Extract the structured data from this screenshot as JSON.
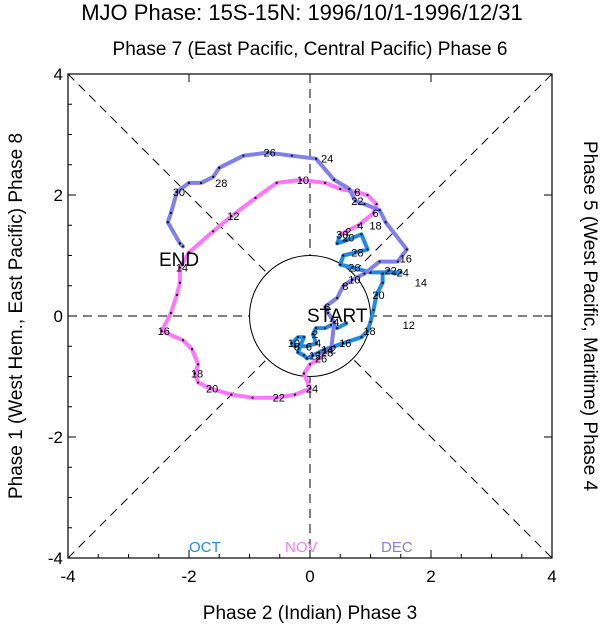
{
  "chart_data": {
    "type": "line",
    "title": "MJO Phase: 15S-15N: 1996/10/1-1996/12/31",
    "top_label": "Phase 7 (East Pacific, Central Pacific) Phase 6",
    "bottom_label": "Phase 2 (Indian) Phase 3",
    "left_label": "Phase 1 (West Hem., East Pacific) Phase 8",
    "right_label": "Phase 5 (West Pacific, Maritime) Phase 4",
    "xlim": [
      -4,
      4
    ],
    "ylim": [
      -4,
      4
    ],
    "xticks": [
      "-4",
      "-2",
      "0",
      "2",
      "4"
    ],
    "yticks": [
      "4",
      "2",
      "0",
      "-2",
      "-4"
    ],
    "annotations": {
      "start": "START",
      "end": "END"
    },
    "legend": [
      "OCT",
      "NOV",
      "DEC"
    ],
    "series": [
      {
        "name": "OCT",
        "color": "#1f8be6",
        "points": [
          [
            0.6,
            -0.12
          ],
          [
            0.45,
            -0.2
          ],
          [
            0.35,
            -0.15
          ],
          [
            0.25,
            -0.2
          ],
          [
            0.1,
            -0.2
          ],
          [
            0.05,
            -0.3
          ],
          [
            0.1,
            -0.45
          ],
          [
            -0.05,
            -0.5
          ],
          [
            -0.25,
            -0.5
          ],
          [
            -0.3,
            -0.45
          ],
          [
            -0.2,
            -0.35
          ],
          [
            -0.1,
            -0.35
          ],
          [
            -0.2,
            -0.6
          ],
          [
            -0.1,
            -0.65
          ],
          [
            -0.05,
            -0.7
          ],
          [
            0.05,
            -0.65
          ],
          [
            0.15,
            -0.6
          ],
          [
            0.25,
            -0.55
          ],
          [
            0.4,
            -0.5
          ],
          [
            0.55,
            -0.45
          ],
          [
            0.85,
            -0.35
          ],
          [
            0.95,
            -0.25
          ],
          [
            1.0,
            -0.1
          ],
          [
            1.05,
            0.1
          ],
          [
            1.1,
            0.35
          ],
          [
            1.2,
            0.55
          ],
          [
            1.2,
            0.7
          ],
          [
            1.3,
            0.75
          ],
          [
            1.4,
            0.7
          ],
          [
            1.5,
            0.72
          ],
          [
            1.0,
            0.72
          ],
          [
            0.7,
            0.8
          ],
          [
            0.5,
            0.85
          ],
          [
            0.55,
            1.0
          ],
          [
            0.75,
            1.05
          ],
          [
            0.95,
            1.1
          ],
          [
            0.85,
            1.35
          ],
          [
            0.6,
            1.25
          ],
          [
            0.45,
            1.2
          ],
          [
            0.5,
            1.35
          ]
        ],
        "labels": [
          {
            "text": "2",
            "x": 0.05,
            "y": -0.3
          },
          {
            "text": "4",
            "x": 0.1,
            "y": -0.45
          },
          {
            "text": "6",
            "x": -0.05,
            "y": -0.5
          },
          {
            "text": "8",
            "x": -0.25,
            "y": -0.5
          },
          {
            "text": "10",
            "x": -0.3,
            "y": -0.45
          },
          {
            "text": "12",
            "x": 0.05,
            "y": -0.65
          },
          {
            "text": "14",
            "x": 0.25,
            "y": -0.55
          },
          {
            "text": "16",
            "x": 0.55,
            "y": -0.45
          },
          {
            "text": "18",
            "x": 0.95,
            "y": -0.25
          },
          {
            "text": "20",
            "x": 1.1,
            "y": 0.35
          },
          {
            "text": "22",
            "x": 1.3,
            "y": 0.75
          },
          {
            "text": "24",
            "x": 1.5,
            "y": 0.72
          },
          {
            "text": "26",
            "x": 0.7,
            "y": 0.8
          },
          {
            "text": "28",
            "x": 0.75,
            "y": 1.05
          },
          {
            "text": "30",
            "x": 0.5,
            "y": 1.35
          }
        ]
      },
      {
        "name": "NOV",
        "color": "#ff77ff",
        "points": [
          [
            0.5,
            1.35
          ],
          [
            0.6,
            1.4
          ],
          [
            0.8,
            1.5
          ],
          [
            1.05,
            1.7
          ],
          [
            1.1,
            1.85
          ],
          [
            0.95,
            2.0
          ],
          [
            0.75,
            2.05
          ],
          [
            0.5,
            2.1
          ],
          [
            0.25,
            2.2
          ],
          [
            -0.15,
            2.25
          ],
          [
            -0.55,
            2.2
          ],
          [
            -0.9,
            1.95
          ],
          [
            -1.3,
            1.65
          ],
          [
            -1.6,
            1.4
          ],
          [
            -2.0,
            1.05
          ],
          [
            -2.15,
            0.8
          ],
          [
            -2.15,
            0.55
          ],
          [
            -2.2,
            0.35
          ],
          [
            -2.3,
            0.05
          ],
          [
            -2.45,
            -0.25
          ],
          [
            -2.1,
            -0.4
          ],
          [
            -1.95,
            -0.55
          ],
          [
            -1.85,
            -0.8
          ],
          [
            -1.9,
            -0.95
          ],
          [
            -1.85,
            -1.1
          ],
          [
            -1.65,
            -1.2
          ],
          [
            -1.3,
            -1.3
          ],
          [
            -0.95,
            -1.35
          ],
          [
            -0.55,
            -1.35
          ],
          [
            -0.25,
            -1.3
          ],
          [
            0.0,
            -1.2
          ],
          [
            -0.1,
            -0.95
          ],
          [
            0.0,
            -0.8
          ],
          [
            0.15,
            -0.7
          ],
          [
            0.25,
            -0.6
          ]
        ],
        "labels": [
          {
            "text": "2",
            "x": 0.6,
            "y": 1.4
          },
          {
            "text": "4",
            "x": 0.8,
            "y": 1.5
          },
          {
            "text": "6",
            "x": 1.05,
            "y": 1.7
          },
          {
            "text": "8",
            "x": 0.75,
            "y": 2.05
          },
          {
            "text": "10",
            "x": -0.15,
            "y": 2.25
          },
          {
            "text": "12",
            "x": -1.3,
            "y": 1.65
          },
          {
            "text": "14",
            "x": -2.15,
            "y": 0.8
          },
          {
            "text": "16",
            "x": -2.45,
            "y": -0.25
          },
          {
            "text": "18",
            "x": -1.9,
            "y": -0.95
          },
          {
            "text": "20",
            "x": -1.65,
            "y": -1.2
          },
          {
            "text": "22",
            "x": -0.55,
            "y": -1.35
          },
          {
            "text": "24",
            "x": 0.0,
            "y": -1.2
          },
          {
            "text": "26",
            "x": 0.15,
            "y": -0.7
          },
          {
            "text": "28",
            "x": 0.25,
            "y": -0.6
          }
        ]
      },
      {
        "name": "DEC",
        "color": "#7f7fee",
        "points": [
          [
            0.25,
            -0.6
          ],
          [
            0.35,
            -0.55
          ],
          [
            0.4,
            -0.1
          ],
          [
            0.3,
            0.05
          ],
          [
            0.25,
            0.15
          ],
          [
            0.45,
            0.3
          ],
          [
            0.55,
            0.5
          ],
          [
            0.7,
            0.6
          ],
          [
            0.9,
            0.7
          ],
          [
            1.15,
            0.9
          ],
          [
            1.45,
            0.9
          ],
          [
            1.6,
            1.1
          ],
          [
            1.25,
            1.55
          ],
          [
            1.15,
            1.75
          ],
          [
            0.9,
            1.85
          ],
          [
            0.75,
            1.9
          ],
          [
            0.65,
            2.1
          ],
          [
            0.4,
            2.25
          ],
          [
            0.1,
            2.6
          ],
          [
            -0.3,
            2.65
          ],
          [
            -0.7,
            2.7
          ],
          [
            -1.1,
            2.65
          ],
          [
            -1.5,
            2.45
          ],
          [
            -1.6,
            2.3
          ],
          [
            -1.8,
            2.2
          ],
          [
            -2.0,
            2.2
          ],
          [
            -2.2,
            2.05
          ],
          [
            -2.3,
            1.7
          ],
          [
            -2.35,
            1.55
          ],
          [
            -2.15,
            1.2
          ],
          [
            -2.1,
            1.15
          ]
        ],
        "labels": [
          {
            "text": "2",
            "x": 0.35,
            "y": -0.55
          },
          {
            "text": "4",
            "x": 0.4,
            "y": -0.1
          },
          {
            "text": "6",
            "x": 0.25,
            "y": 0.15
          },
          {
            "text": "8",
            "x": 0.55,
            "y": 0.5
          },
          {
            "text": "10",
            "x": 0.7,
            "y": 0.6
          },
          {
            "text": "12",
            "x": 1.6,
            "y": -0.15
          },
          {
            "text": "14",
            "x": 1.8,
            "y": 0.55
          },
          {
            "text": "16",
            "x": 1.55,
            "y": 0.95
          },
          {
            "text": "18",
            "x": 1.05,
            "y": 1.5
          },
          {
            "text": "20",
            "x": 0.6,
            "y": 1.3
          },
          {
            "text": "22",
            "x": 0.75,
            "y": 1.9
          },
          {
            "text": "24",
            "x": 0.25,
            "y": 2.6
          },
          {
            "text": "26",
            "x": -0.7,
            "y": 2.7
          },
          {
            "text": "28",
            "x": -1.5,
            "y": 2.2
          },
          {
            "text": "30",
            "x": -2.2,
            "y": 2.05
          }
        ]
      }
    ]
  }
}
